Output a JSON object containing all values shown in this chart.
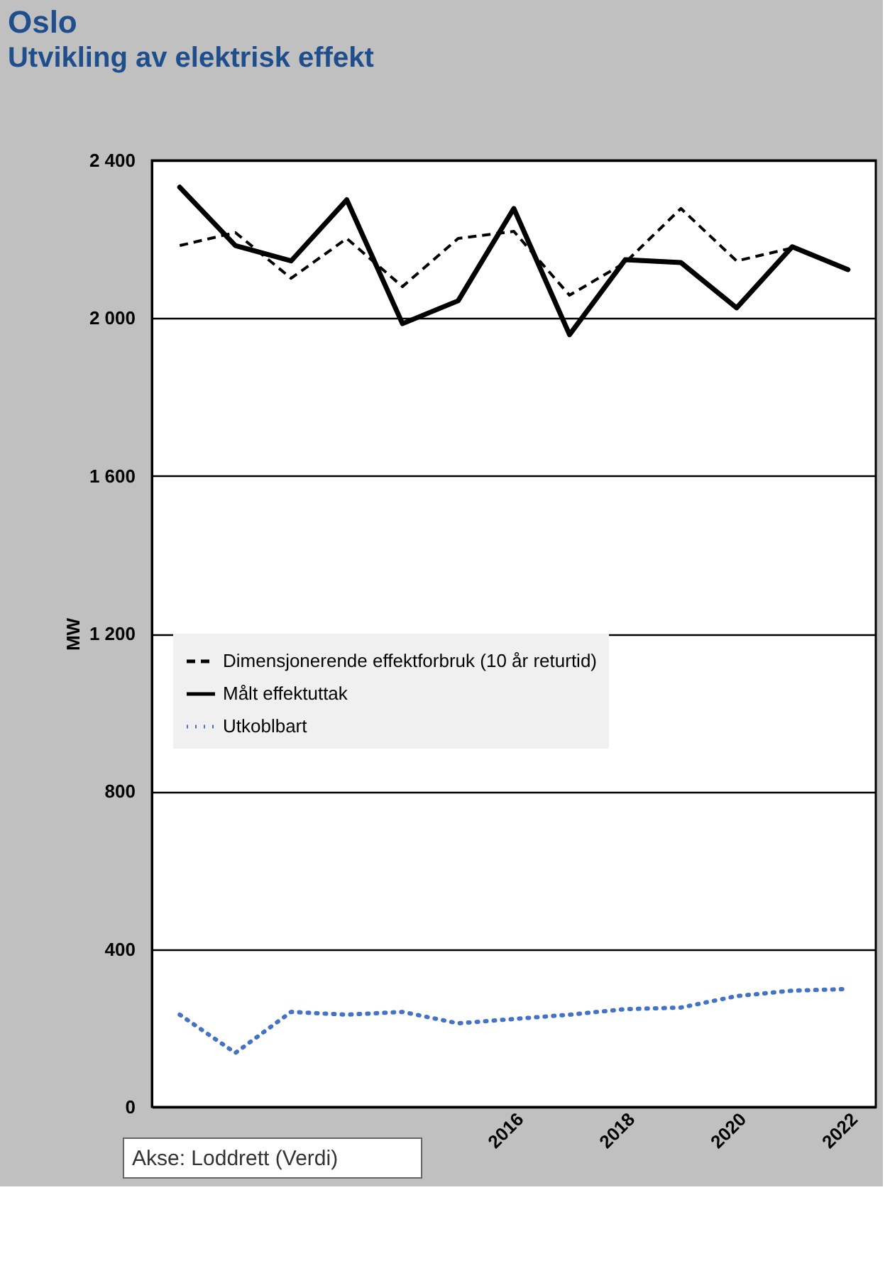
{
  "chart_data": {
    "type": "line",
    "title": "Oslo",
    "subtitle": "Utvikling av elektrisk effekt",
    "ylabel": "MW",
    "x": [
      2010,
      2011,
      2012,
      2013,
      2014,
      2015,
      2016,
      2017,
      2018,
      2019,
      2020,
      2021,
      2022
    ],
    "series": [
      {
        "name": "Dimensjonerende effektforbruk (10 år returtid)",
        "color": "#000000",
        "line_style": "dashed",
        "values": [
          2184,
          2217,
          2101,
          2202,
          2080,
          2202,
          2220,
          2058,
          2141,
          2278,
          2145,
          2178,
          null
        ]
      },
      {
        "name": "Målt effektuttak",
        "color": "#000000",
        "line_style": "solid",
        "values": [
          2332,
          2184,
          2145,
          2300,
          1986,
          2044,
          2278,
          1958,
          2148,
          2141,
          2026,
          2181,
          2123
        ]
      },
      {
        "name": "Utkoblbart",
        "color": "#4472c4",
        "line_style": "dotted",
        "values": [
          234,
          137,
          241,
          234,
          241,
          212,
          223,
          234,
          248,
          252,
          281,
          295,
          299
        ]
      }
    ],
    "xlim": [
      2009.5,
      2022.5
    ],
    "xticks": [
      2016,
      2018,
      2020,
      2022
    ],
    "ylim": [
      0,
      2400
    ],
    "yticks": [
      0,
      400,
      800,
      {
        "value": 1200,
        "label": "1 200"
      },
      {
        "value": 1600,
        "label": "1 600"
      },
      {
        "value": 2000,
        "label": "2 000"
      },
      {
        "value": 2400,
        "label": "2 400"
      }
    ],
    "grid": "y",
    "legend": "left",
    "marker": "none",
    "annotations": [
      "Akse: Loddrett (Verdi)"
    ]
  }
}
